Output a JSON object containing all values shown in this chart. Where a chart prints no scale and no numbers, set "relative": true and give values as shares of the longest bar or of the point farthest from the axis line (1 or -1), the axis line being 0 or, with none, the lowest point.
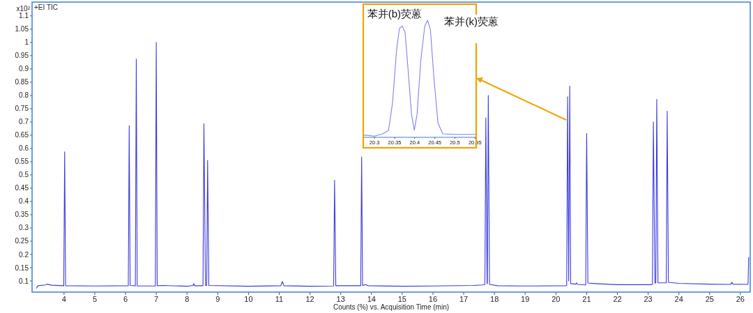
{
  "chart_data": [
    {
      "type": "line",
      "xlabel": "Counts (%) vs. Acquisition Time (min)",
      "annotations": [
        "x10²",
        "+EI TIC"
      ],
      "xlim": [
        2.96,
        26.32
      ],
      "ylim": [
        0.058,
        1.152
      ],
      "xticks": [
        4,
        5,
        6,
        7,
        8,
        9,
        10,
        11,
        12,
        13,
        14,
        15,
        16,
        17,
        18,
        19,
        20,
        21,
        22,
        23,
        24,
        25,
        26
      ],
      "yticks": [
        0.1,
        0.15,
        0.2,
        0.25,
        0.3,
        0.35,
        0.4,
        0.45,
        0.5,
        0.55,
        0.6,
        0.65,
        0.7,
        0.75,
        0.8,
        0.85,
        0.9,
        0.95,
        1,
        1.05,
        1.1
      ],
      "grid": false,
      "marker": "none",
      "line_style": "solid",
      "series": [
        {
          "color": "#3b3be0",
          "x": [
            3.1,
            3.15,
            3.4,
            3.45,
            3.6,
            3.99,
            4.02,
            4.05,
            5.0,
            6.09,
            6.12,
            6.15,
            6.32,
            6.35,
            6.38,
            6.97,
            7.0,
            7.03,
            7.2,
            8.0,
            8.2,
            8.22,
            8.25,
            8.52,
            8.55,
            8.6,
            8.64,
            8.67,
            8.71,
            10.0,
            11.05,
            11.1,
            11.15,
            12.0,
            12.77,
            12.8,
            12.84,
            13.4,
            13.65,
            13.68,
            13.71,
            13.8,
            13.9,
            15.0,
            16.0,
            17.3,
            17.6,
            17.69,
            17.72,
            17.76,
            17.77,
            17.8,
            17.84,
            18.1,
            19.0,
            20.3,
            20.35,
            20.38,
            20.415,
            20.45,
            20.48,
            20.65,
            20.67,
            20.7,
            20.97,
            21.0,
            21.04,
            21.3,
            22.0,
            23.1,
            23.14,
            23.17,
            23.22,
            23.25,
            23.28,
            23.32,
            23.45,
            23.59,
            23.62,
            23.66,
            24.0,
            25.0,
            25.68,
            25.72,
            25.76,
            26.2,
            26.25,
            26.27
          ],
          "values": [
            0.072,
            0.082,
            0.085,
            0.088,
            0.084,
            0.082,
            0.587,
            0.082,
            0.081,
            0.082,
            0.686,
            0.083,
            0.082,
            0.937,
            0.081,
            0.081,
            1.0,
            0.082,
            0.083,
            0.08,
            0.083,
            0.09,
            0.082,
            0.082,
            0.693,
            0.083,
            0.083,
            0.555,
            0.083,
            0.08,
            0.082,
            0.098,
            0.082,
            0.08,
            0.081,
            0.48,
            0.082,
            0.082,
            0.082,
            0.568,
            0.083,
            0.086,
            0.082,
            0.08,
            0.081,
            0.083,
            0.085,
            0.087,
            0.715,
            0.09,
            0.09,
            0.8,
            0.087,
            0.082,
            0.081,
            0.082,
            0.083,
            0.795,
            0.1,
            0.835,
            0.09,
            0.088,
            0.093,
            0.087,
            0.085,
            0.657,
            0.092,
            0.09,
            0.086,
            0.086,
            0.087,
            0.7,
            0.092,
            0.092,
            0.785,
            0.093,
            0.093,
            0.093,
            0.74,
            0.095,
            0.091,
            0.088,
            0.087,
            0.095,
            0.088,
            0.087,
            0.088,
            0.19
          ]
        }
      ]
    },
    {
      "type": "line",
      "relative": true,
      "xlim": [
        20.272,
        20.553
      ],
      "xticks": [
        20.3,
        20.35,
        20.4,
        20.45,
        20.5,
        20.55
      ],
      "tick_labels": "x",
      "marker": "none",
      "line_style": "solid",
      "annotations": [
        {
          "text": "苯并(b)荧蒽",
          "x": 20.369,
          "y": 0.95
        },
        {
          "text": "苯并(k)荧蒽",
          "x": 20.432,
          "y": 1
        }
      ],
      "series": [
        {
          "color": "#8080ee",
          "x": [
            20.272,
            20.3,
            20.32,
            20.335,
            20.345,
            20.355,
            20.362,
            20.369,
            20.376,
            20.383,
            20.392,
            20.399,
            20.406,
            20.415,
            20.425,
            20.432,
            20.439,
            20.448,
            20.458,
            20.47,
            20.5,
            20.553
          ],
          "values": [
            0.02,
            0.01,
            0.03,
            0.06,
            0.3,
            0.75,
            0.93,
            0.95,
            0.9,
            0.6,
            0.2,
            0.06,
            0.2,
            0.65,
            0.95,
            1,
            0.92,
            0.5,
            0.12,
            0.03,
            0.025,
            0.025
          ]
        }
      ]
    }
  ]
}
